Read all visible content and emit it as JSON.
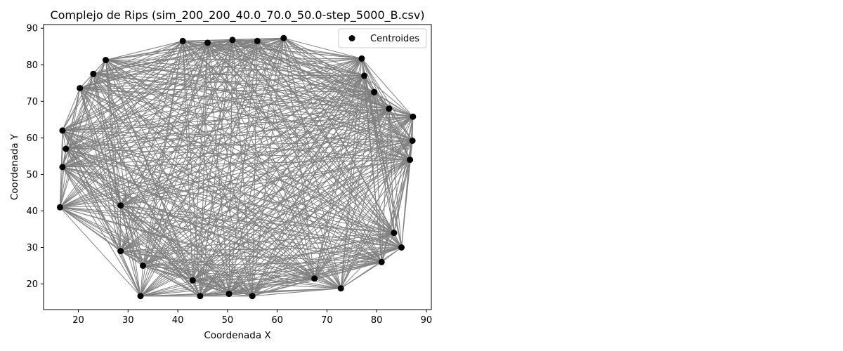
{
  "chart_data": {
    "type": "scatter",
    "title": "Complejo de Rips (sim_200_200_40.0_70.0_50.0-step_5000_B.csv)",
    "xlabel": "Coordenada X",
    "ylabel": "Coordenada Y",
    "xlim": [
      13,
      91
    ],
    "ylim": [
      13,
      91
    ],
    "xticks": [
      20,
      30,
      40,
      50,
      60,
      70,
      80,
      90
    ],
    "yticks": [
      20,
      30,
      40,
      50,
      60,
      70,
      80,
      90
    ],
    "grid": false,
    "legend": {
      "position": "top-right",
      "entries": [
        "Centroides"
      ]
    },
    "colors": {
      "points": "#000000",
      "edges": "#808080"
    },
    "series": [
      {
        "name": "Centroides",
        "points": [
          [
            16.3,
            41.0
          ],
          [
            16.8,
            52.0
          ],
          [
            16.8,
            62.0
          ],
          [
            17.5,
            57.0
          ],
          [
            20.3,
            73.6
          ],
          [
            23.0,
            77.5
          ],
          [
            25.5,
            81.3
          ],
          [
            28.5,
            41.5
          ],
          [
            28.5,
            29.0
          ],
          [
            32.5,
            16.7
          ],
          [
            33.0,
            25.0
          ],
          [
            41.0,
            86.5
          ],
          [
            43.0,
            21.0
          ],
          [
            44.5,
            16.7
          ],
          [
            46.0,
            86.0
          ],
          [
            50.3,
            17.3
          ],
          [
            51.0,
            86.8
          ],
          [
            55.0,
            16.7
          ],
          [
            56.0,
            86.5
          ],
          [
            61.3,
            87.3
          ],
          [
            67.5,
            21.5
          ],
          [
            72.8,
            18.8
          ],
          [
            77.0,
            81.7
          ],
          [
            77.5,
            77.0
          ],
          [
            79.5,
            72.5
          ],
          [
            81.0,
            26.0
          ],
          [
            82.5,
            68.0
          ],
          [
            83.5,
            34.0
          ],
          [
            85.0,
            30.0
          ],
          [
            86.7,
            54.0
          ],
          [
            87.2,
            59.2
          ],
          [
            87.3,
            65.8
          ]
        ]
      }
    ]
  }
}
